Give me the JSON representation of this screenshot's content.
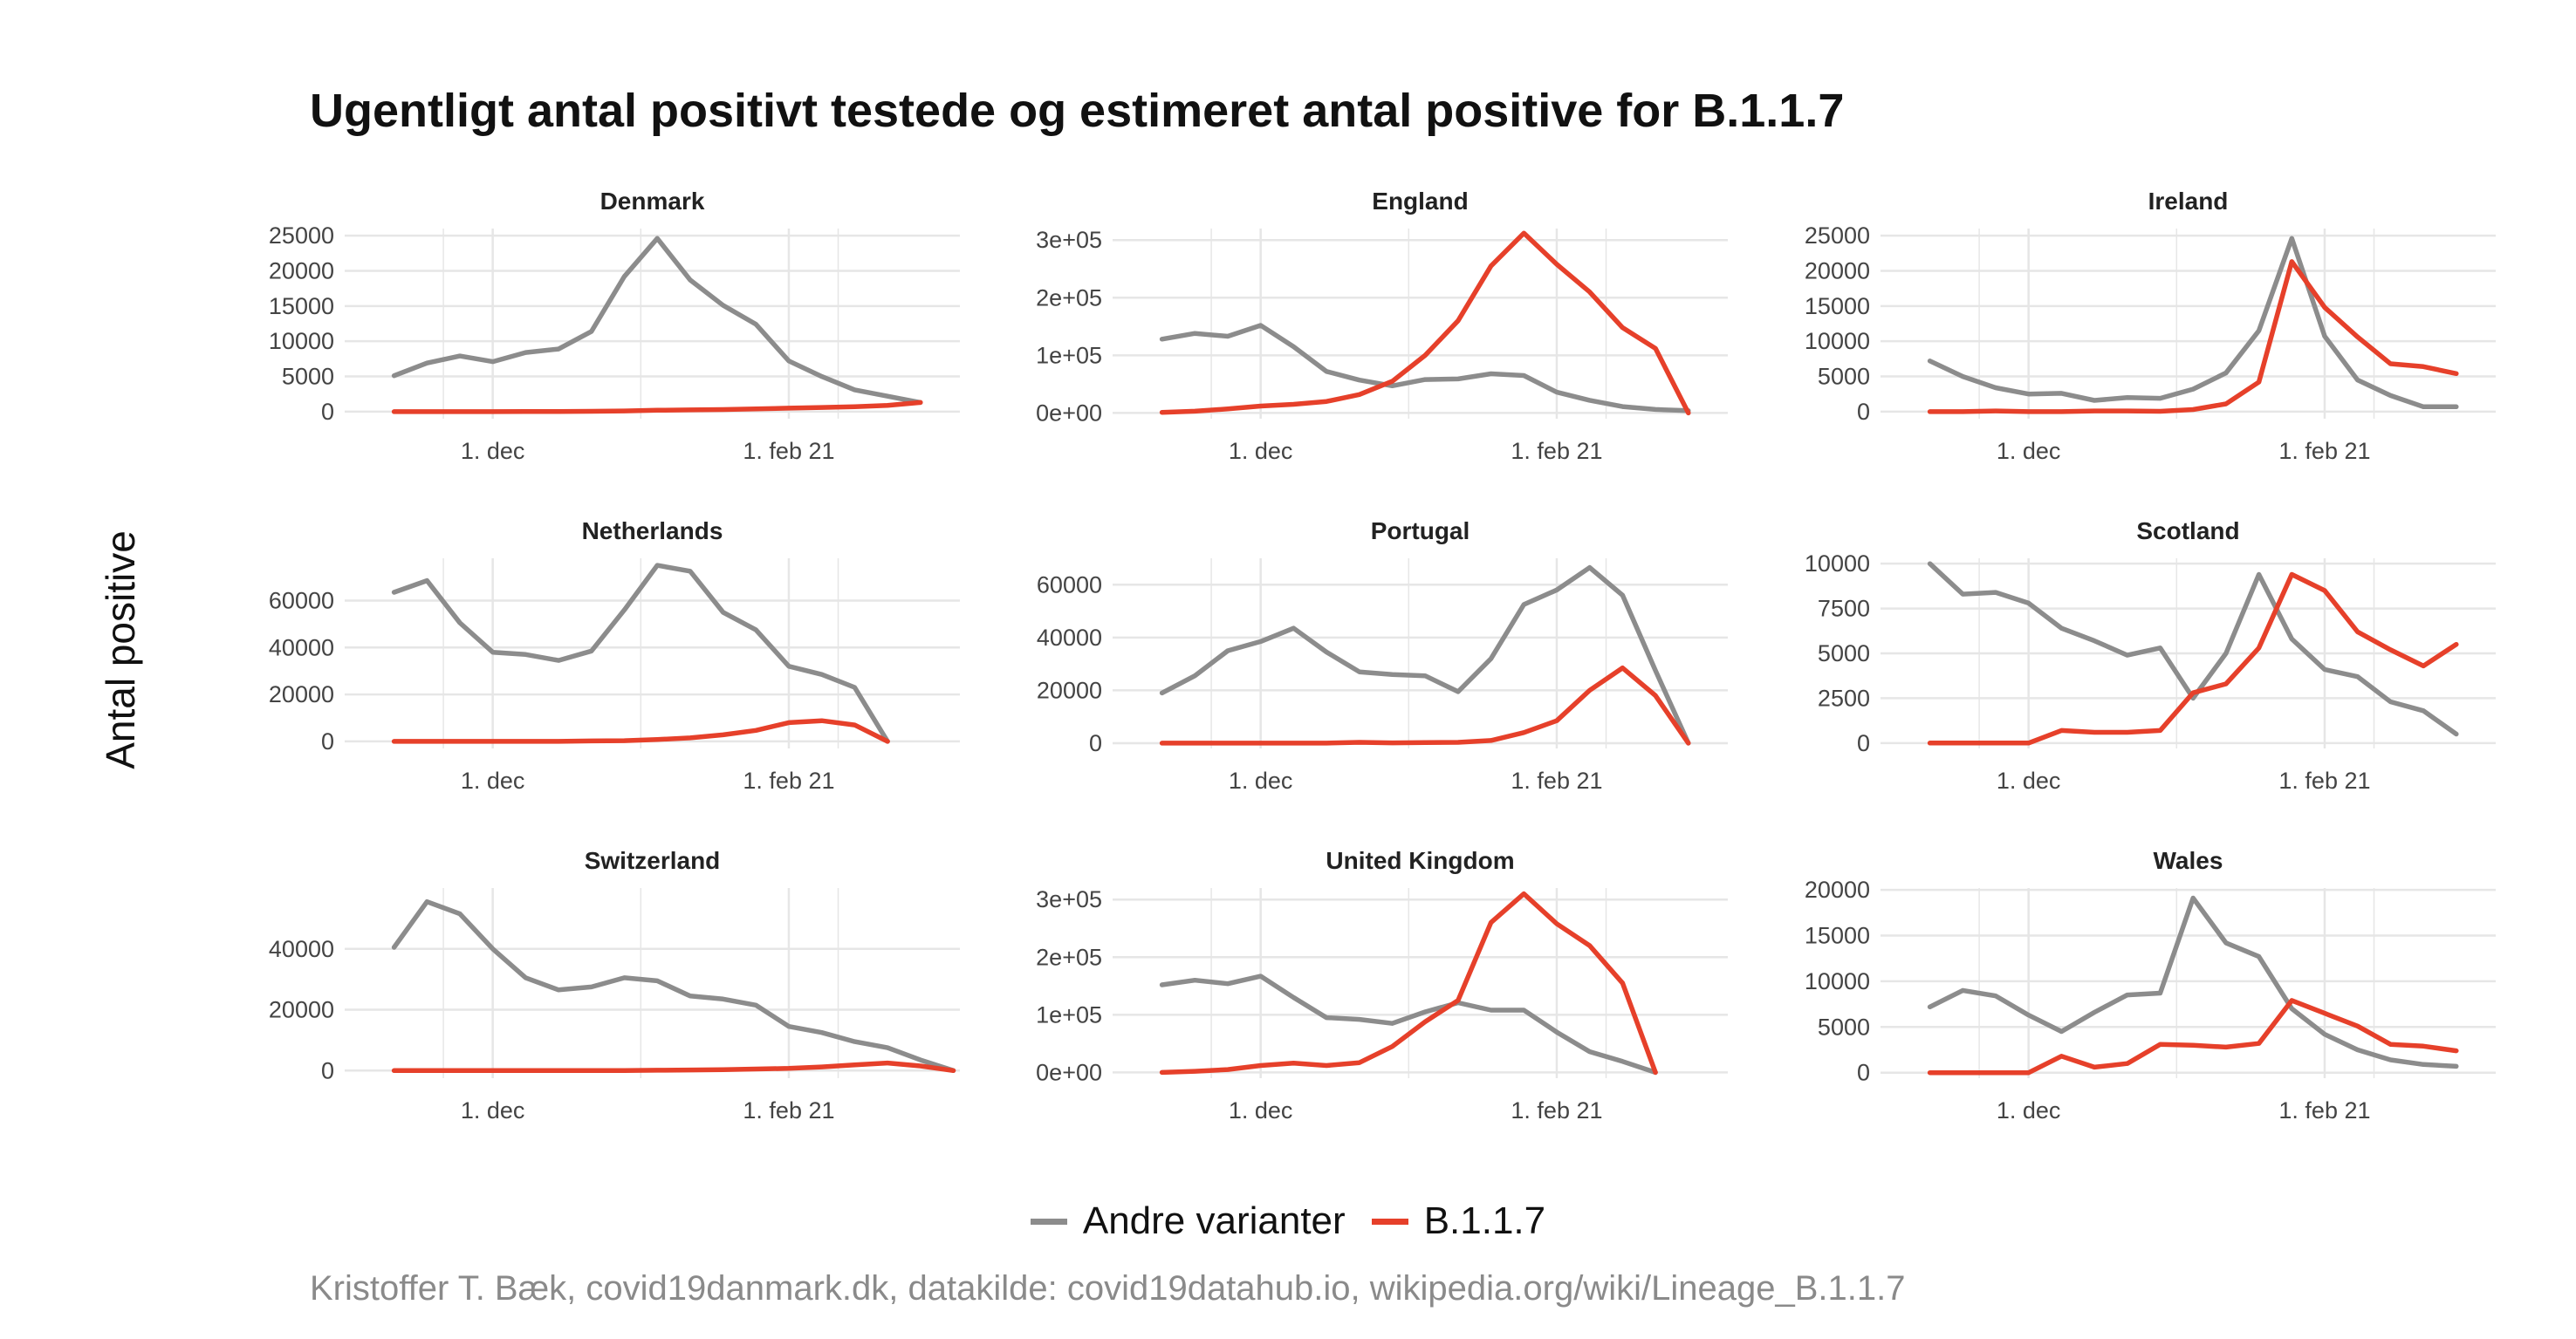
{
  "title": "Ugentligt antal positivt testede og estimeret antal positive for B.1.1.7",
  "ylabel": "Antal positive",
  "caption": "Kristoffer T. Bæk, covid19danmark.dk, datakilde: covid19datahub.io, wikipedia.org/wiki/Lineage_B.1.1.7",
  "colors": {
    "other": "#8c8c8c",
    "b117": "#e6402a",
    "grid": "#e6e6e6"
  },
  "legend": [
    {
      "label": "Andre varianter",
      "color": "#8c8c8c"
    },
    {
      "label": "B.1.1.7",
      "color": "#e6402a"
    }
  ],
  "chart_data": [
    {
      "type": "line",
      "title": "Denmark",
      "x_tick_labels": [
        "1. dec",
        "1. feb 21"
      ],
      "y_ticks": [
        0,
        5000,
        10000,
        15000,
        20000,
        25000
      ],
      "y_tick_labels": [
        "0",
        "5000",
        "10000",
        "15000",
        "20000",
        "25000"
      ],
      "ylim": [
        -1000,
        26000
      ],
      "grid": true,
      "series": [
        {
          "name": "Andre varianter",
          "x": [
            -9,
            -8,
            -7,
            -6,
            -5,
            -4,
            -3,
            -2,
            -1,
            0,
            1,
            2,
            3,
            4,
            5,
            6,
            7
          ],
          "values": [
            5100,
            6900,
            7900,
            7100,
            8400,
            8900,
            11400,
            19200,
            24600,
            18700,
            15100,
            12400,
            7200,
            5000,
            3100,
            2200,
            1300
          ]
        },
        {
          "name": "B.1.1.7",
          "x": [
            -9,
            -8,
            -7,
            -6,
            -5,
            -4,
            -3,
            -2,
            -1,
            0,
            1,
            2,
            3,
            4,
            5,
            6,
            7
          ],
          "values": [
            0,
            0,
            0,
            0,
            10,
            20,
            50,
            100,
            200,
            250,
            300,
            400,
            500,
            600,
            700,
            900,
            1300
          ]
        }
      ]
    },
    {
      "type": "line",
      "title": "England",
      "x_tick_labels": [
        "1. dec",
        "1. feb 21"
      ],
      "y_ticks": [
        0,
        100000,
        200000,
        300000
      ],
      "y_tick_labels": [
        "0e+00",
        "1e+05",
        "2e+05",
        "3e+05"
      ],
      "ylim": [
        -10000,
        320000
      ],
      "grid": true,
      "series": [
        {
          "name": "Andre varianter",
          "x": [
            -9,
            -8,
            -7,
            -6,
            -5,
            -4,
            -3,
            -2,
            -1,
            0,
            1,
            2,
            3,
            4,
            5,
            6,
            7
          ],
          "values": [
            128000,
            138000,
            133000,
            152000,
            115000,
            72000,
            57000,
            47000,
            58000,
            59000,
            68000,
            65000,
            36000,
            22000,
            11000,
            6000,
            4000
          ]
        },
        {
          "name": "B.1.1.7",
          "x": [
            -9,
            -8,
            -7,
            -6,
            -5,
            -4,
            -3,
            -2,
            -1,
            0,
            1,
            2,
            3,
            4,
            5,
            6,
            7
          ],
          "values": [
            1000,
            3000,
            7000,
            12000,
            15000,
            20000,
            32000,
            55000,
            100000,
            160000,
            255000,
            312000,
            258000,
            210000,
            148000,
            112000,
            0
          ]
        }
      ]
    },
    {
      "type": "line",
      "title": "Ireland",
      "x_tick_labels": [
        "1. dec",
        "1. feb 21"
      ],
      "y_ticks": [
        0,
        5000,
        10000,
        15000,
        20000,
        25000
      ],
      "y_tick_labels": [
        "0",
        "5000",
        "10000",
        "15000",
        "20000",
        "25000"
      ],
      "ylim": [
        -1000,
        26000
      ],
      "grid": true,
      "series": [
        {
          "name": "Andre varianter",
          "x": [
            -9,
            -8,
            -7,
            -6,
            -5,
            -4,
            -3,
            -2,
            -1,
            0,
            1,
            2,
            3,
            4,
            5,
            6,
            7
          ],
          "values": [
            7200,
            5000,
            3400,
            2500,
            2600,
            1600,
            2000,
            1900,
            3200,
            5500,
            11500,
            24600,
            10700,
            4500,
            2300,
            700,
            700
          ]
        },
        {
          "name": "B.1.1.7",
          "x": [
            -9,
            -8,
            -7,
            -6,
            -5,
            -4,
            -3,
            -2,
            -1,
            0,
            1,
            2,
            3,
            4,
            5,
            6,
            7
          ],
          "values": [
            0,
            0,
            100,
            0,
            0,
            100,
            100,
            50,
            300,
            1100,
            4200,
            21300,
            14800,
            10600,
            6800,
            6400,
            5400
          ]
        }
      ]
    },
    {
      "type": "line",
      "title": "Netherlands",
      "x_tick_labels": [
        "1. dec",
        "1. feb 21"
      ],
      "y_ticks": [
        0,
        20000,
        40000,
        60000
      ],
      "y_tick_labels": [
        "0",
        "20000",
        "40000",
        "60000"
      ],
      "ylim": [
        -3000,
        78000
      ],
      "grid": true,
      "series": [
        {
          "name": "Andre varianter",
          "x": [
            -9,
            -8,
            -7,
            -6,
            -5,
            -4,
            -3,
            -2,
            -1,
            0,
            1,
            2,
            3,
            4,
            5,
            6
          ],
          "values": [
            63500,
            68500,
            50500,
            38000,
            37000,
            34500,
            38500,
            56000,
            75000,
            72500,
            55000,
            47500,
            32000,
            28500,
            23000,
            0
          ]
        },
        {
          "name": "B.1.1.7",
          "x": [
            -9,
            -8,
            -7,
            -6,
            -5,
            -4,
            -3,
            -2,
            -1,
            0,
            1,
            2,
            3,
            4,
            5,
            6
          ],
          "values": [
            0,
            0,
            0,
            0,
            0,
            0,
            200,
            300,
            800,
            1500,
            2800,
            4700,
            8000,
            8800,
            7000,
            0
          ]
        }
      ]
    },
    {
      "type": "line",
      "title": "Portugal",
      "x_tick_labels": [
        "1. dec",
        "1. feb 21"
      ],
      "y_ticks": [
        0,
        20000,
        40000,
        60000
      ],
      "y_tick_labels": [
        "0",
        "20000",
        "40000",
        "60000"
      ],
      "ylim": [
        -2000,
        70000
      ],
      "grid": true,
      "series": [
        {
          "name": "Andre varianter",
          "x": [
            -9,
            -8,
            -7,
            -6,
            -5,
            -4,
            -3,
            -2,
            -1,
            0,
            1,
            2,
            3,
            4,
            5,
            6,
            7
          ],
          "values": [
            19000,
            25500,
            35000,
            38500,
            43500,
            34500,
            27000,
            26000,
            25500,
            19500,
            32000,
            52500,
            58000,
            66500,
            56000,
            27500,
            0
          ]
        },
        {
          "name": "B.1.1.7",
          "x": [
            -9,
            -8,
            -7,
            -6,
            -5,
            -4,
            -3,
            -2,
            -1,
            0,
            1,
            2,
            3,
            4,
            5,
            6,
            7
          ],
          "values": [
            0,
            0,
            0,
            0,
            0,
            0,
            300,
            100,
            200,
            300,
            1000,
            4000,
            8500,
            20000,
            28500,
            18000,
            0
          ]
        }
      ]
    },
    {
      "type": "line",
      "title": "Scotland",
      "x_tick_labels": [
        "1. dec",
        "1. feb 21"
      ],
      "y_ticks": [
        0,
        2500,
        5000,
        7500,
        10000
      ],
      "y_tick_labels": [
        "0",
        "2500",
        "5000",
        "7500",
        "10000"
      ],
      "ylim": [
        -300,
        10300
      ],
      "grid": true,
      "series": [
        {
          "name": "Andre varianter",
          "x": [
            -9,
            -8,
            -7,
            -6,
            -5,
            -4,
            -3,
            -2,
            -1,
            0,
            1,
            2,
            3,
            4,
            5,
            6,
            7
          ],
          "values": [
            10000,
            8300,
            8400,
            7800,
            6400,
            5700,
            4900,
            5300,
            2500,
            5000,
            9400,
            5800,
            4100,
            3700,
            2300,
            1800,
            500
          ]
        },
        {
          "name": "B.1.1.7",
          "x": [
            -9,
            -8,
            -7,
            -6,
            -5,
            -4,
            -3,
            -2,
            -1,
            0,
            1,
            2,
            3,
            4,
            5,
            6,
            7
          ],
          "values": [
            0,
            0,
            0,
            0,
            700,
            600,
            600,
            700,
            2800,
            3300,
            5300,
            9400,
            8500,
            6200,
            5200,
            4300,
            5500
          ]
        }
      ]
    },
    {
      "type": "line",
      "title": "Switzerland",
      "x_tick_labels": [
        "1. dec",
        "1. feb 21"
      ],
      "y_ticks": [
        0,
        20000,
        40000
      ],
      "y_tick_labels": [
        "0",
        "20000",
        "40000"
      ],
      "ylim": [
        -2500,
        60000
      ],
      "grid": true,
      "series": [
        {
          "name": "Andre varianter",
          "x": [
            -9,
            -8,
            -7,
            -6,
            -5,
            -4,
            -3,
            -2,
            -1,
            0,
            1,
            2,
            3,
            4,
            5,
            6,
            7,
            8
          ],
          "values": [
            40500,
            55500,
            51500,
            40000,
            30500,
            26500,
            27500,
            30500,
            29500,
            24500,
            23500,
            21500,
            14500,
            12500,
            9500,
            7500,
            3500,
            0
          ]
        },
        {
          "name": "B.1.1.7",
          "x": [
            -9,
            -8,
            -7,
            -6,
            -5,
            -4,
            -3,
            -2,
            -1,
            0,
            1,
            2,
            3,
            4,
            5,
            6,
            7,
            8
          ],
          "values": [
            0,
            0,
            0,
            0,
            0,
            0,
            0,
            0,
            100,
            200,
            300,
            500,
            700,
            1200,
            1900,
            2500,
            1500,
            0
          ]
        }
      ]
    },
    {
      "type": "line",
      "title": "United Kingdom",
      "x_tick_labels": [
        "1. dec",
        "1. feb 21"
      ],
      "y_ticks": [
        0,
        100000,
        200000,
        300000
      ],
      "y_tick_labels": [
        "0e+00",
        "1e+05",
        "2e+05",
        "3e+05"
      ],
      "ylim": [
        -10000,
        320000
      ],
      "grid": true,
      "series": [
        {
          "name": "Andre varianter",
          "x": [
            -9,
            -8,
            -7,
            -6,
            -5,
            -4,
            -3,
            -2,
            -1,
            0,
            1,
            2,
            3,
            4,
            5,
            6
          ],
          "values": [
            152000,
            160000,
            154000,
            167000,
            130000,
            95000,
            92000,
            85000,
            105000,
            121000,
            108000,
            108000,
            70000,
            36000,
            19000,
            0
          ]
        },
        {
          "name": "B.1.1.7",
          "x": [
            -9,
            -8,
            -7,
            -6,
            -5,
            -4,
            -3,
            -2,
            -1,
            0,
            1,
            2,
            3,
            4,
            5,
            6
          ],
          "values": [
            0,
            2000,
            5000,
            12000,
            16000,
            12000,
            17000,
            45000,
            88000,
            125000,
            260000,
            310000,
            258000,
            220000,
            155000,
            0
          ]
        }
      ]
    },
    {
      "type": "line",
      "title": "Wales",
      "x_tick_labels": [
        "1. dec",
        "1. feb 21"
      ],
      "y_ticks": [
        0,
        5000,
        10000,
        15000,
        20000
      ],
      "y_tick_labels": [
        "0",
        "5000",
        "10000",
        "15000",
        "20000"
      ],
      "ylim": [
        -600,
        20200
      ],
      "grid": true,
      "series": [
        {
          "name": "Andre varianter",
          "x": [
            -9,
            -8,
            -7,
            -6,
            -5,
            -4,
            -3,
            -2,
            -1,
            0,
            1,
            2,
            3,
            4,
            5,
            6,
            7
          ],
          "values": [
            7200,
            9000,
            8400,
            6300,
            4500,
            6600,
            8500,
            8700,
            19100,
            14200,
            12700,
            7000,
            4200,
            2500,
            1400,
            900,
            700
          ]
        },
        {
          "name": "B.1.1.7",
          "x": [
            -9,
            -8,
            -7,
            -6,
            -5,
            -4,
            -3,
            -2,
            -1,
            0,
            1,
            2,
            3,
            4,
            5,
            6,
            7
          ],
          "values": [
            0,
            0,
            0,
            0,
            1800,
            600,
            1000,
            3100,
            3000,
            2800,
            3200,
            7900,
            6500,
            5100,
            3100,
            2900,
            2400
          ]
        }
      ]
    }
  ]
}
